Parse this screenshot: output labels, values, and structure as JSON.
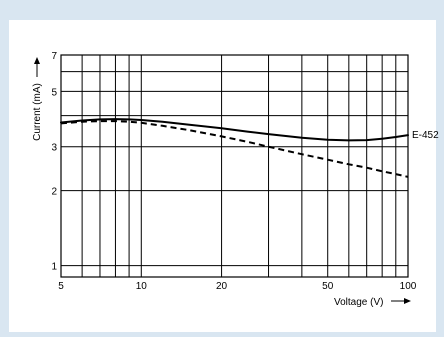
{
  "chart_data": {
    "type": "line",
    "title": "",
    "xlabel": "Voltage (V)",
    "ylabel": "Current (mA)",
    "x_scale": "log",
    "y_scale": "log",
    "xlim": [
      5,
      100
    ],
    "ylim": [
      0.9,
      7
    ],
    "x_ticks": [
      {
        "value": 5,
        "label": "5"
      },
      {
        "value": 10,
        "label": "10"
      },
      {
        "value": 20,
        "label": "20"
      },
      {
        "value": 50,
        "label": "50"
      },
      {
        "value": 100,
        "label": "100"
      }
    ],
    "y_ticks": [
      {
        "value": 1,
        "label": "1"
      },
      {
        "value": 2,
        "label": "2"
      },
      {
        "value": 3,
        "label": "3"
      },
      {
        "value": 5,
        "label": "5"
      },
      {
        "value": 7,
        "label": "7"
      }
    ],
    "x_grid": [
      5,
      6,
      7,
      8,
      9,
      10,
      20,
      30,
      40,
      50,
      60,
      70,
      80,
      90,
      100
    ],
    "y_grid": [
      0.9,
      1,
      2,
      3,
      4,
      5,
      6,
      7
    ],
    "grid": true,
    "series": [
      {
        "name": "E-452",
        "style": "solid",
        "x": [
          5,
          6,
          7,
          8,
          9,
          10,
          12,
          15,
          20,
          25,
          30,
          40,
          50,
          60,
          70,
          80,
          90,
          100
        ],
        "y": [
          3.75,
          3.82,
          3.86,
          3.87,
          3.86,
          3.84,
          3.78,
          3.68,
          3.56,
          3.45,
          3.37,
          3.26,
          3.2,
          3.18,
          3.19,
          3.23,
          3.28,
          3.34
        ]
      },
      {
        "style": "dashed",
        "x": [
          5,
          6,
          7,
          8,
          9,
          10,
          12,
          15,
          20,
          25,
          30,
          40,
          50,
          60,
          70,
          80,
          90,
          100
        ],
        "y": [
          3.72,
          3.78,
          3.8,
          3.8,
          3.78,
          3.74,
          3.64,
          3.5,
          3.3,
          3.14,
          3.0,
          2.8,
          2.66,
          2.55,
          2.47,
          2.39,
          2.33,
          2.27
        ]
      }
    ],
    "colors": {
      "background": "#d9e6f1",
      "plot_background": "#ffffff",
      "line": "#000000",
      "grid": "#000000"
    }
  }
}
